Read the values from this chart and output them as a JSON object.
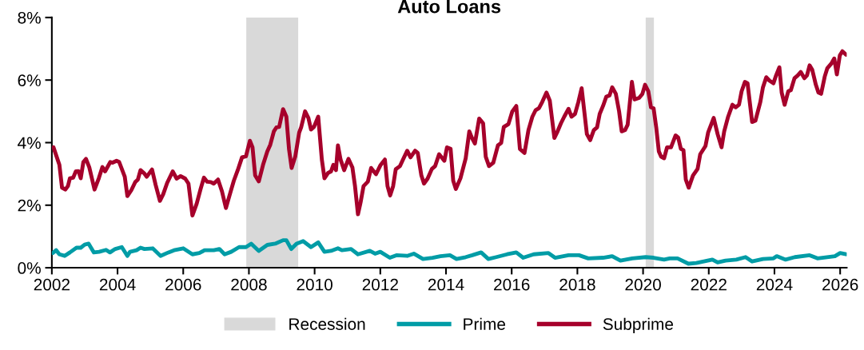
{
  "chart_data": {
    "type": "line",
    "title": "Auto Loans",
    "xlim": [
      2002,
      2026.2
    ],
    "xticks": [
      2002,
      2004,
      2006,
      2008,
      2010,
      2012,
      2014,
      2016,
      2018,
      2020,
      2022,
      2024,
      2026
    ],
    "ylim": [
      0,
      8
    ],
    "yticks": [
      {
        "value": 0,
        "label": "0%"
      },
      {
        "value": 2,
        "label": "2%"
      },
      {
        "value": 4,
        "label": "4%"
      },
      {
        "value": 6,
        "label": "6%"
      },
      {
        "value": 8,
        "label": "8%"
      }
    ],
    "grid": false,
    "legend": "bottom",
    "marker": "none",
    "line_style": "solid",
    "bands": [
      {
        "axis": "x",
        "from": 2007.92,
        "to": 2009.5,
        "label": "Recession",
        "color": "#d9d9d9"
      },
      {
        "axis": "x",
        "from": 2020.08,
        "to": 2020.33,
        "color": "#d9d9d9"
      }
    ],
    "series": [
      {
        "name": "Prime",
        "color": "#009ca6",
        "x": [
          2002.03,
          2002.13,
          2002.23,
          2002.39,
          2002.55,
          2002.75,
          2002.88,
          2003.0,
          2003.12,
          2003.28,
          2003.44,
          2003.65,
          2003.77,
          2003.93,
          2004.13,
          2004.3,
          2004.38,
          2004.58,
          2004.7,
          2004.82,
          2005.07,
          2005.31,
          2005.55,
          2005.72,
          2006.0,
          2006.28,
          2006.49,
          2006.65,
          2006.93,
          2007.1,
          2007.26,
          2007.46,
          2007.7,
          2007.91,
          2008.07,
          2008.3,
          2008.56,
          2008.8,
          2009.04,
          2009.14,
          2009.29,
          2009.45,
          2009.65,
          2009.89,
          2010.11,
          2010.3,
          2010.5,
          2010.71,
          2010.83,
          2011.11,
          2011.32,
          2011.68,
          2011.84,
          2012.0,
          2012.29,
          2012.49,
          2012.82,
          2013.02,
          2013.3,
          2013.59,
          2013.83,
          2014.12,
          2014.32,
          2014.6,
          2014.8,
          2015.07,
          2015.29,
          2015.53,
          2015.86,
          2016.14,
          2016.35,
          2016.67,
          2017.12,
          2017.32,
          2017.73,
          2018.05,
          2018.33,
          2018.78,
          2019.06,
          2019.31,
          2019.67,
          2020.08,
          2020.32,
          2020.64,
          2020.81,
          2021.05,
          2021.38,
          2021.62,
          2022.11,
          2022.27,
          2022.51,
          2022.84,
          2023.12,
          2023.32,
          2023.65,
          2023.97,
          2024.07,
          2024.34,
          2024.62,
          2025.07,
          2025.31,
          2025.84,
          2026.0,
          2026.18
        ],
        "values": [
          0.47,
          0.56,
          0.43,
          0.38,
          0.49,
          0.64,
          0.64,
          0.74,
          0.77,
          0.49,
          0.51,
          0.57,
          0.49,
          0.6,
          0.66,
          0.38,
          0.51,
          0.56,
          0.64,
          0.6,
          0.62,
          0.38,
          0.49,
          0.56,
          0.62,
          0.43,
          0.47,
          0.56,
          0.56,
          0.6,
          0.43,
          0.51,
          0.66,
          0.66,
          0.77,
          0.54,
          0.73,
          0.77,
          0.88,
          0.88,
          0.6,
          0.77,
          0.85,
          0.66,
          0.81,
          0.51,
          0.54,
          0.62,
          0.56,
          0.6,
          0.43,
          0.54,
          0.45,
          0.51,
          0.32,
          0.4,
          0.38,
          0.45,
          0.28,
          0.32,
          0.37,
          0.4,
          0.28,
          0.34,
          0.4,
          0.49,
          0.28,
          0.34,
          0.43,
          0.49,
          0.32,
          0.43,
          0.47,
          0.32,
          0.4,
          0.4,
          0.3,
          0.32,
          0.37,
          0.23,
          0.3,
          0.34,
          0.32,
          0.26,
          0.3,
          0.3,
          0.13,
          0.15,
          0.26,
          0.17,
          0.23,
          0.26,
          0.34,
          0.2,
          0.28,
          0.3,
          0.37,
          0.26,
          0.34,
          0.4,
          0.3,
          0.37,
          0.47,
          0.43
        ]
      },
      {
        "name": "Subprime",
        "color": "#a6002b",
        "x": [
          2002.05,
          2002.23,
          2002.31,
          2002.41,
          2002.49,
          2002.55,
          2002.65,
          2002.73,
          2002.81,
          2002.88,
          2002.96,
          2003.04,
          2003.14,
          2003.3,
          2003.43,
          2003.54,
          2003.62,
          2003.78,
          2003.85,
          2003.97,
          2004.05,
          2004.22,
          2004.3,
          2004.42,
          2004.54,
          2004.62,
          2004.7,
          2004.81,
          2004.89,
          2005.05,
          2005.16,
          2005.29,
          2005.39,
          2005.51,
          2005.68,
          2005.8,
          2005.92,
          2006.06,
          2006.16,
          2006.28,
          2006.41,
          2006.53,
          2006.63,
          2006.73,
          2006.84,
          2006.93,
          2007.06,
          2007.18,
          2007.3,
          2007.42,
          2007.54,
          2007.66,
          2007.79,
          2007.91,
          2008.03,
          2008.11,
          2008.19,
          2008.3,
          2008.43,
          2008.56,
          2008.65,
          2008.76,
          2008.84,
          2008.92,
          2009.04,
          2009.14,
          2009.22,
          2009.3,
          2009.41,
          2009.53,
          2009.59,
          2009.71,
          2009.81,
          2009.89,
          2009.98,
          2010.11,
          2010.22,
          2010.3,
          2010.41,
          2010.5,
          2010.57,
          2010.65,
          2010.71,
          2010.79,
          2010.9,
          2011.03,
          2011.15,
          2011.23,
          2011.32,
          2011.4,
          2011.49,
          2011.62,
          2011.72,
          2011.87,
          2012.0,
          2012.14,
          2012.22,
          2012.3,
          2012.39,
          2012.47,
          2012.6,
          2012.71,
          2012.82,
          2012.92,
          2013.06,
          2013.14,
          2013.25,
          2013.33,
          2013.44,
          2013.57,
          2013.67,
          2013.79,
          2013.95,
          2014.03,
          2014.14,
          2014.22,
          2014.3,
          2014.44,
          2014.6,
          2014.71,
          2014.79,
          2014.88,
          2015.01,
          2015.13,
          2015.21,
          2015.31,
          2015.44,
          2015.58,
          2015.68,
          2015.76,
          2015.9,
          2016.02,
          2016.14,
          2016.25,
          2016.39,
          2016.51,
          2016.63,
          2016.73,
          2016.83,
          2016.93,
          2017.06,
          2017.16,
          2017.3,
          2017.38,
          2017.5,
          2017.6,
          2017.73,
          2017.82,
          2017.93,
          2018.03,
          2018.13,
          2018.29,
          2018.39,
          2018.5,
          2018.6,
          2018.68,
          2018.78,
          2018.88,
          2018.98,
          2019.06,
          2019.17,
          2019.27,
          2019.35,
          2019.45,
          2019.53,
          2019.66,
          2019.74,
          2019.88,
          2019.98,
          2020.06,
          2020.16,
          2020.24,
          2020.32,
          2020.4,
          2020.48,
          2020.55,
          2020.64,
          2020.73,
          2020.85,
          2020.99,
          2021.07,
          2021.15,
          2021.23,
          2021.3,
          2021.39,
          2021.52,
          2021.66,
          2021.74,
          2021.9,
          2021.98,
          2022.15,
          2022.27,
          2022.39,
          2022.47,
          2022.59,
          2022.72,
          2022.82,
          2022.92,
          2023.0,
          2023.1,
          2023.18,
          2023.32,
          2023.42,
          2023.57,
          2023.65,
          2023.75,
          2023.85,
          2023.97,
          2024.05,
          2024.15,
          2024.22,
          2024.31,
          2024.42,
          2024.5,
          2024.61,
          2024.71,
          2024.8,
          2024.91,
          2024.99,
          2025.07,
          2025.15,
          2025.26,
          2025.34,
          2025.42,
          2025.53,
          2025.61,
          2025.74,
          2025.82,
          2025.9,
          2025.99,
          2026.07,
          2026.18
        ],
        "values": [
          3.85,
          3.29,
          2.56,
          2.5,
          2.61,
          2.86,
          2.88,
          3.08,
          3.09,
          2.86,
          3.38,
          3.48,
          3.21,
          2.5,
          2.86,
          3.22,
          3.08,
          3.38,
          3.36,
          3.42,
          3.38,
          2.91,
          2.29,
          2.48,
          2.74,
          2.82,
          3.12,
          3.02,
          2.91,
          3.14,
          2.65,
          2.14,
          2.35,
          2.71,
          3.08,
          2.85,
          2.93,
          2.85,
          2.69,
          1.67,
          2.05,
          2.52,
          2.88,
          2.75,
          2.74,
          2.69,
          2.82,
          2.44,
          1.91,
          2.35,
          2.78,
          3.12,
          3.53,
          3.56,
          4.06,
          3.85,
          2.95,
          2.76,
          3.29,
          3.72,
          3.93,
          4.36,
          4.49,
          4.5,
          5.07,
          4.83,
          3.8,
          3.19,
          3.55,
          4.32,
          4.49,
          5.0,
          4.79,
          4.42,
          4.5,
          4.83,
          3.46,
          2.86,
          3.03,
          3.08,
          3.29,
          3.12,
          3.91,
          3.46,
          3.12,
          3.48,
          3.21,
          2.61,
          1.71,
          2.09,
          2.61,
          2.75,
          3.19,
          2.99,
          3.27,
          3.46,
          2.61,
          2.31,
          2.61,
          3.15,
          3.25,
          3.5,
          3.74,
          3.53,
          3.74,
          3.67,
          2.95,
          2.69,
          2.85,
          3.16,
          3.25,
          3.63,
          3.42,
          3.85,
          3.8,
          2.78,
          2.52,
          2.86,
          3.5,
          4.36,
          4.15,
          3.97,
          4.77,
          4.62,
          3.55,
          3.25,
          3.36,
          3.91,
          3.99,
          4.5,
          4.59,
          5.0,
          5.17,
          3.8,
          3.67,
          4.4,
          4.83,
          5.04,
          5.1,
          5.3,
          5.6,
          5.34,
          4.15,
          4.32,
          4.62,
          4.83,
          5.08,
          4.83,
          4.92,
          5.3,
          5.74,
          4.27,
          4.08,
          4.4,
          4.49,
          4.92,
          5.17,
          5.47,
          5.51,
          5.77,
          5.56,
          5.0,
          4.36,
          4.4,
          4.57,
          5.94,
          5.38,
          5.43,
          5.56,
          5.85,
          5.64,
          5.13,
          5.1,
          4.49,
          3.72,
          3.55,
          3.5,
          3.85,
          3.85,
          4.23,
          4.16,
          3.8,
          3.76,
          2.82,
          2.56,
          2.95,
          3.16,
          3.63,
          3.89,
          4.32,
          4.79,
          4.27,
          3.85,
          4.36,
          4.83,
          5.21,
          5.13,
          5.21,
          5.64,
          5.94,
          5.9,
          4.66,
          4.7,
          5.3,
          5.77,
          6.09,
          5.98,
          5.9,
          6.15,
          6.41,
          5.6,
          5.21,
          5.64,
          5.68,
          6.06,
          6.15,
          6.26,
          6.06,
          6.15,
          6.47,
          6.33,
          5.85,
          5.6,
          5.56,
          6.11,
          6.38,
          6.54,
          6.69,
          6.18,
          6.79,
          6.92,
          6.81
        ]
      }
    ]
  }
}
